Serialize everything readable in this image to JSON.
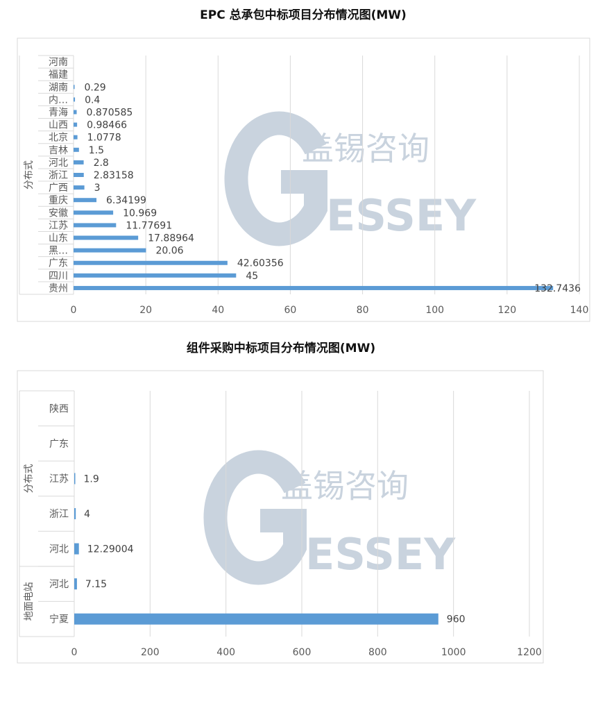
{
  "chart_data": [
    {
      "type": "bar",
      "orientation": "horizontal",
      "title": "EPC 总承包中标项目分布情况图(MW)",
      "groups": [
        {
          "name": "分布式",
          "categories": [
            "河南",
            "福建",
            "湖南",
            "内…",
            "青海",
            "山西",
            "北京",
            "吉林",
            "河北",
            "浙江",
            "广西",
            "重庆",
            "安徽",
            "江苏",
            "山东",
            "黑…",
            "广东",
            "四川",
            "贵州"
          ]
        }
      ],
      "categories": [
        "河南",
        "福建",
        "湖南",
        "内…",
        "青海",
        "山西",
        "北京",
        "吉林",
        "河北",
        "浙江",
        "广西",
        "重庆",
        "安徽",
        "江苏",
        "山东",
        "黑…",
        "广东",
        "四川",
        "贵州"
      ],
      "values": [
        null,
        null,
        0.29,
        0.4,
        0.870585,
        0.98466,
        1.0778,
        1.5,
        2.8,
        2.83158,
        3,
        6.34199,
        10.969,
        11.77691,
        17.88964,
        20.06,
        42.60356,
        45,
        132.7436
      ],
      "data_labels": [
        "",
        "",
        "0.29",
        "0.4",
        "0.870585",
        "0.98466",
        "1.0778",
        "1.5",
        "2.8",
        "2.83158",
        "3",
        "6.34199",
        "10.969",
        "11.77691",
        "17.88964",
        "20.06",
        "42.60356",
        "45",
        "132.7436"
      ],
      "xlim": [
        0,
        140
      ],
      "xticks": [
        "0",
        "20",
        "40",
        "60",
        "80",
        "100",
        "120",
        "140"
      ],
      "grid": true,
      "bar_color": "#5b9bd5"
    },
    {
      "type": "bar",
      "orientation": "horizontal",
      "title": "组件采购中标项目分布情况图(MW)",
      "groups": [
        {
          "name": "分布式",
          "categories": [
            "陕西",
            "广东",
            "江苏",
            "浙江",
            "河北"
          ]
        },
        {
          "name": "地面电站",
          "categories": [
            "河北",
            "宁夏"
          ]
        }
      ],
      "categories": [
        "陕西",
        "广东",
        "江苏",
        "浙江",
        "河北",
        "河北",
        "宁夏"
      ],
      "values": [
        null,
        null,
        1.9,
        4,
        12.29004,
        7.15,
        960
      ],
      "data_labels": [
        "",
        "",
        "1.9",
        "4",
        "12.29004",
        "7.15",
        "960"
      ],
      "xlim": [
        0,
        1200
      ],
      "xticks": [
        "0",
        "200",
        "400",
        "600",
        "800",
        "1000",
        "1200"
      ],
      "grid": true,
      "bar_color": "#5b9bd5"
    }
  ],
  "watermark": {
    "cn": "盖锡咨询",
    "en_initial": "G",
    "en_rest": "ESSEY",
    "color": "#c9d3de"
  }
}
